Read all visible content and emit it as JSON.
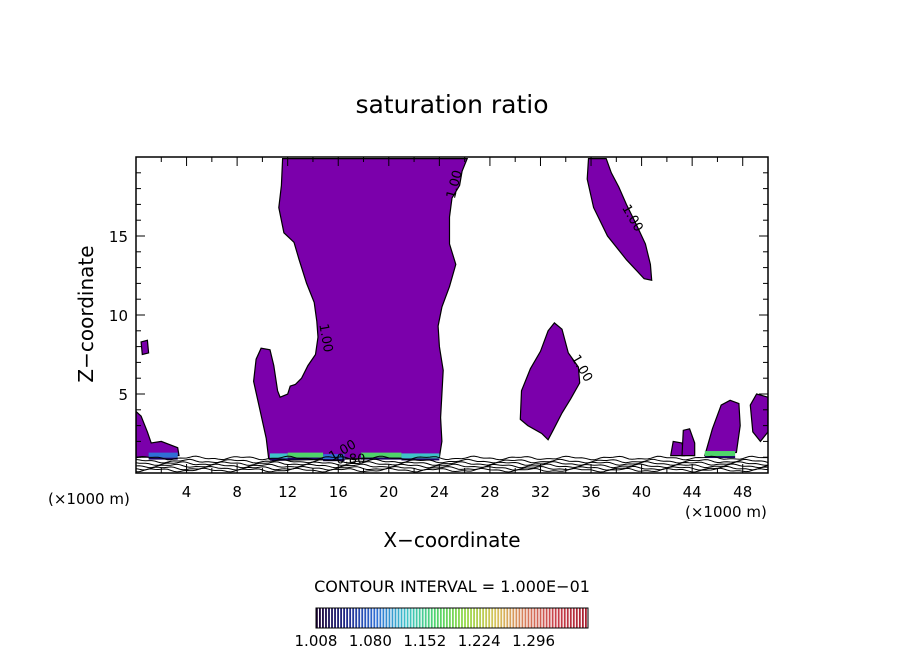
{
  "chart_data": {
    "type": "contour",
    "title": "saturation ratio",
    "xlabel": "X−coordinate",
    "ylabel": "Z−coordinate",
    "x_unit_left": "(×1000 m)",
    "x_unit_right": "(×1000 m)",
    "xlim": [
      0,
      50
    ],
    "ylim": [
      0,
      20
    ],
    "xticks": [
      4,
      8,
      12,
      16,
      20,
      24,
      28,
      32,
      36,
      40,
      44,
      48
    ],
    "yticks": [
      5,
      10,
      15
    ],
    "contour_interval_text": "CONTOUR INTERVAL = 1.000E−01",
    "contour_labels": [
      {
        "text": "1.00",
        "x": 25.5,
        "y": 18.2,
        "angle": -75
      },
      {
        "text": "1.00",
        "x": 39.0,
        "y": 16.0,
        "angle": 60
      },
      {
        "text": "1.00",
        "x": 14.7,
        "y": 8.5,
        "angle": 80
      },
      {
        "text": "1.00",
        "x": 35.0,
        "y": 6.5,
        "angle": 60
      },
      {
        "text": "1.00",
        "x": 16.5,
        "y": 1.2,
        "angle": -30
      },
      {
        "text": "0.80",
        "x": 17.0,
        "y": 0.6,
        "angle": 0
      }
    ],
    "colorbar": {
      "ticks": [
        "1.008",
        "1.080",
        "1.152",
        "1.224",
        "1.296"
      ],
      "colors": [
        "#1a0033",
        "#1f2a8c",
        "#2f6fd6",
        "#3ec2c8",
        "#4fd46a",
        "#9ad84a",
        "#d7c25a",
        "#d77a5a",
        "#c8404a",
        "#a82030"
      ]
    },
    "fill_color": "#7b00ab",
    "regions": [
      {
        "name": "central-column",
        "points": [
          [
            10.5,
            0.9
          ],
          [
            10.3,
            2.2
          ],
          [
            9.8,
            4.0
          ],
          [
            9.3,
            5.8
          ],
          [
            9.5,
            7.2
          ],
          [
            9.9,
            7.9
          ],
          [
            10.6,
            7.8
          ],
          [
            10.9,
            6.8
          ],
          [
            11.2,
            5.2
          ],
          [
            11.4,
            4.8
          ],
          [
            12.0,
            5.0
          ],
          [
            12.2,
            5.5
          ],
          [
            12.6,
            5.6
          ],
          [
            13.1,
            6.0
          ],
          [
            13.6,
            6.8
          ],
          [
            14.2,
            7.5
          ],
          [
            14.4,
            8.6
          ],
          [
            14.3,
            9.6
          ],
          [
            14.1,
            10.8
          ],
          [
            13.5,
            12.0
          ],
          [
            12.9,
            13.5
          ],
          [
            12.5,
            14.6
          ],
          [
            11.7,
            15.2
          ],
          [
            11.3,
            16.8
          ],
          [
            11.5,
            18.2
          ],
          [
            11.6,
            19.9
          ],
          [
            26.2,
            19.9
          ],
          [
            25.8,
            19.1
          ],
          [
            25.6,
            18.2
          ],
          [
            25.0,
            17.4
          ],
          [
            24.8,
            16.2
          ],
          [
            24.8,
            14.5
          ],
          [
            25.3,
            13.2
          ],
          [
            24.8,
            11.8
          ],
          [
            24.2,
            10.5
          ],
          [
            23.9,
            9.3
          ],
          [
            24.0,
            8.0
          ],
          [
            24.3,
            6.5
          ],
          [
            24.2,
            5.0
          ],
          [
            24.1,
            3.5
          ],
          [
            24.2,
            2.0
          ],
          [
            24.0,
            1.0
          ],
          [
            10.8,
            0.8
          ]
        ]
      },
      {
        "name": "upper-right-tongue",
        "points": [
          [
            35.8,
            19.9
          ],
          [
            37.2,
            19.9
          ],
          [
            37.6,
            19.0
          ],
          [
            38.2,
            18.1
          ],
          [
            38.8,
            17.0
          ],
          [
            39.6,
            15.7
          ],
          [
            40.3,
            14.5
          ],
          [
            40.7,
            13.2
          ],
          [
            40.8,
            12.2
          ],
          [
            40.2,
            12.3
          ],
          [
            38.8,
            13.5
          ],
          [
            37.3,
            15.0
          ],
          [
            36.2,
            16.8
          ],
          [
            35.7,
            18.6
          ]
        ]
      },
      {
        "name": "right-blob",
        "points": [
          [
            30.4,
            3.4
          ],
          [
            30.5,
            5.2
          ],
          [
            31.2,
            6.6
          ],
          [
            32.0,
            7.7
          ],
          [
            32.6,
            9.0
          ],
          [
            33.1,
            9.5
          ],
          [
            33.7,
            9.1
          ],
          [
            34.2,
            7.6
          ],
          [
            35.0,
            6.7
          ],
          [
            35.1,
            5.7
          ],
          [
            34.4,
            4.7
          ],
          [
            33.7,
            3.8
          ],
          [
            33.0,
            2.7
          ],
          [
            32.6,
            2.1
          ],
          [
            32.1,
            2.5
          ],
          [
            31.0,
            3.0
          ]
        ]
      },
      {
        "name": "left-edge-upper",
        "points": [
          [
            0.4,
            8.3
          ],
          [
            0.9,
            8.4
          ],
          [
            1.0,
            7.6
          ],
          [
            0.5,
            7.5
          ]
        ]
      },
      {
        "name": "left-edge-lower",
        "points": [
          [
            0,
            3.9
          ],
          [
            0.4,
            3.6
          ],
          [
            0.9,
            2.6
          ],
          [
            1.2,
            1.9
          ],
          [
            2.0,
            2.0
          ],
          [
            3.3,
            1.6
          ],
          [
            3.4,
            1.1
          ],
          [
            1.0,
            1.0
          ],
          [
            0,
            1.0
          ]
        ]
      },
      {
        "name": "right-edge-bump-1",
        "points": [
          [
            42.3,
            1.1
          ],
          [
            42.5,
            2.0
          ],
          [
            43.2,
            1.9
          ],
          [
            43.4,
            1.1
          ]
        ]
      },
      {
        "name": "right-edge-bump-2",
        "points": [
          [
            43.2,
            1.1
          ],
          [
            43.3,
            2.7
          ],
          [
            43.8,
            2.8
          ],
          [
            44.2,
            1.9
          ],
          [
            44.2,
            1.1
          ]
        ]
      },
      {
        "name": "right-edge-mound",
        "points": [
          [
            45.0,
            1.1
          ],
          [
            45.6,
            2.8
          ],
          [
            46.3,
            4.3
          ],
          [
            47.0,
            4.6
          ],
          [
            47.7,
            4.4
          ],
          [
            47.8,
            3.0
          ],
          [
            47.5,
            1.3
          ]
        ]
      },
      {
        "name": "right-edge-corner",
        "points": [
          [
            48.6,
            4.3
          ],
          [
            49.1,
            5.0
          ],
          [
            50.0,
            4.8
          ],
          [
            50.0,
            2.6
          ],
          [
            49.4,
            2.0
          ],
          [
            48.8,
            2.6
          ]
        ]
      }
    ],
    "bands": [
      {
        "x0": 1.0,
        "x1": 3.3,
        "y": 1.1,
        "color": "#2f6fd6"
      },
      {
        "x0": 10.6,
        "x1": 12.0,
        "y": 1.05,
        "color": "#3ec2c8"
      },
      {
        "x0": 12.0,
        "x1": 14.8,
        "y": 1.1,
        "color": "#4fd46a"
      },
      {
        "x0": 14.8,
        "x1": 16.5,
        "y": 1.0,
        "color": "#2f6fd6"
      },
      {
        "x0": 17.8,
        "x1": 21.0,
        "y": 1.1,
        "color": "#4fd46a"
      },
      {
        "x0": 21.0,
        "x1": 24.0,
        "y": 1.05,
        "color": "#3ec2c8"
      },
      {
        "x0": 45.0,
        "x1": 47.4,
        "y": 1.2,
        "color": "#4fd46a"
      }
    ]
  }
}
